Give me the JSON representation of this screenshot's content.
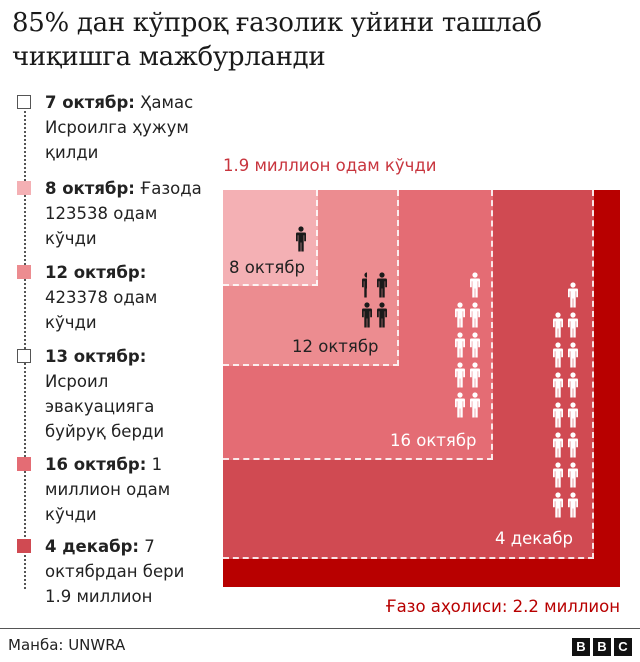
{
  "title": "85% дан кўпроқ ғазолик уйини ташлаб чиқишга мажбурланди",
  "timeline": [
    {
      "date": "7 октябр:",
      "text": " Ҳамас Исроилга ҳужум қилди",
      "marker_color": "#ffffff",
      "marker_border": "#555555"
    },
    {
      "date": "8 октябр:",
      "text": " Ғазода 123538 одам кўчди",
      "marker_color": "#f4b0b4",
      "marker_border": "#f4b0b4"
    },
    {
      "date": "12 октябр:",
      "text": " 423378 одам кўчди",
      "marker_color": "#ec8c90",
      "marker_border": "#ec8c90"
    },
    {
      "date": "13 октябр:",
      "text": " Исроил эвакуацияга буйруқ берди",
      "marker_color": "#ffffff",
      "marker_border": "#555555"
    },
    {
      "date": "16 октябр:",
      "text": " 1 миллион одам кўчди",
      "marker_color": "#e46c74",
      "marker_border": "#e46c74"
    },
    {
      "date": "4 декабр:",
      "text": " 7 октябрдан бери 1.9 миллион",
      "marker_color": "#d04a52",
      "marker_border": "#d04a52"
    }
  ],
  "chart_label_top": "1.9 миллион одам кўчди",
  "bottom_label": "Ғазо аҳолиси: 2.2 миллион",
  "source": "Манба: UNWRA",
  "logo": [
    "B",
    "B",
    "C"
  ],
  "colors": {
    "oct8": "#f4b0b4",
    "oct12": "#ec8c90",
    "oct16": "#e46c74",
    "dec4": "#d04a52",
    "population": "#b80000"
  },
  "chart_data": {
    "type": "area",
    "title": "85% дан кўпроқ ғазолик уйини ташлаб чиқишга мажбурланди",
    "subtitle": "1.9 миллион одам кўчди",
    "description": "Nested squares; area proportional to displaced people; each person icon ≈ 123,538 people",
    "categories": [
      "8 октябр",
      "12 октябр",
      "16 октябр",
      "4 декабр",
      "Ғазо аҳолиси"
    ],
    "values": [
      123538,
      423378,
      1000000,
      1900000,
      2200000
    ],
    "icons_per_group": [
      1,
      3.5,
      9,
      15
    ],
    "legend_colors": [
      "#f4b0b4",
      "#ec8c90",
      "#e46c74",
      "#d04a52",
      "#b80000"
    ],
    "annotation": "Ғазо аҳолиси: 2.2 миллион",
    "source": "Манба: UNWRA"
  },
  "boxes": [
    {
      "label": "4 декабр",
      "icons": 15
    },
    {
      "label": "16 октябр",
      "icons": 9
    },
    {
      "label": "12 октябр",
      "icons": 3.5
    },
    {
      "label": "8 октябр",
      "icons": 1
    }
  ]
}
